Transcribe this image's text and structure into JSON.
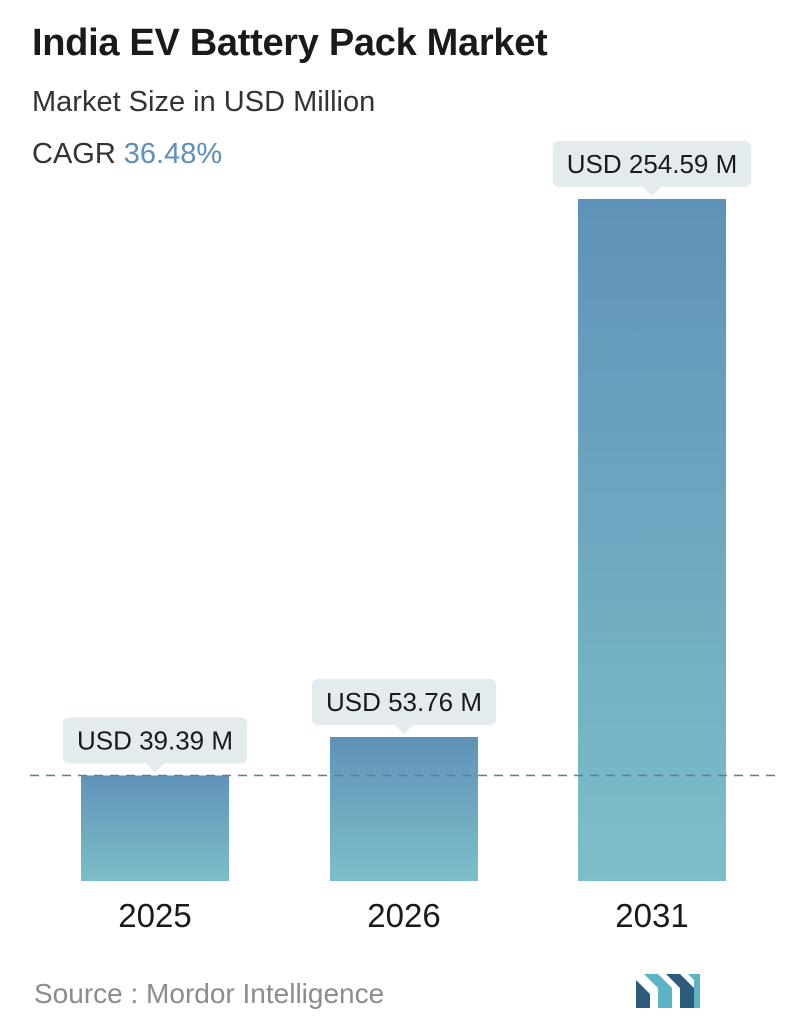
{
  "header": {
    "title": "India EV Battery Pack Market",
    "subtitle": "Market Size in USD Million",
    "cagr_label": "CAGR",
    "cagr_value": "36.48%"
  },
  "colors": {
    "cagr_accent": "#5b8fbd",
    "bar_top": "#5f92b8",
    "bar_bottom": "#7cbfc8",
    "label_bg": "#e4ebee",
    "dashed_line": "#5d7f96",
    "logo_dark": "#2c5b7d",
    "logo_light": "#5bb3c4"
  },
  "chart_data": {
    "type": "bar",
    "categories": [
      "2025",
      "2026",
      "2031"
    ],
    "values": [
      39.39,
      53.76,
      254.59
    ],
    "value_labels": [
      "USD 39.39 M",
      "USD 53.76 M",
      "USD 254.59 M"
    ],
    "title": "India EV Battery Pack Market",
    "subtitle": "Market Size in USD Million",
    "xlabel": "",
    "ylabel": "",
    "grid": false,
    "reference_line": "dashed at the 2025 value"
  },
  "footer": {
    "source": "Source :  Mordor Intelligence"
  },
  "logo": {
    "icon": "mordor-intelligence-logo-icon"
  }
}
